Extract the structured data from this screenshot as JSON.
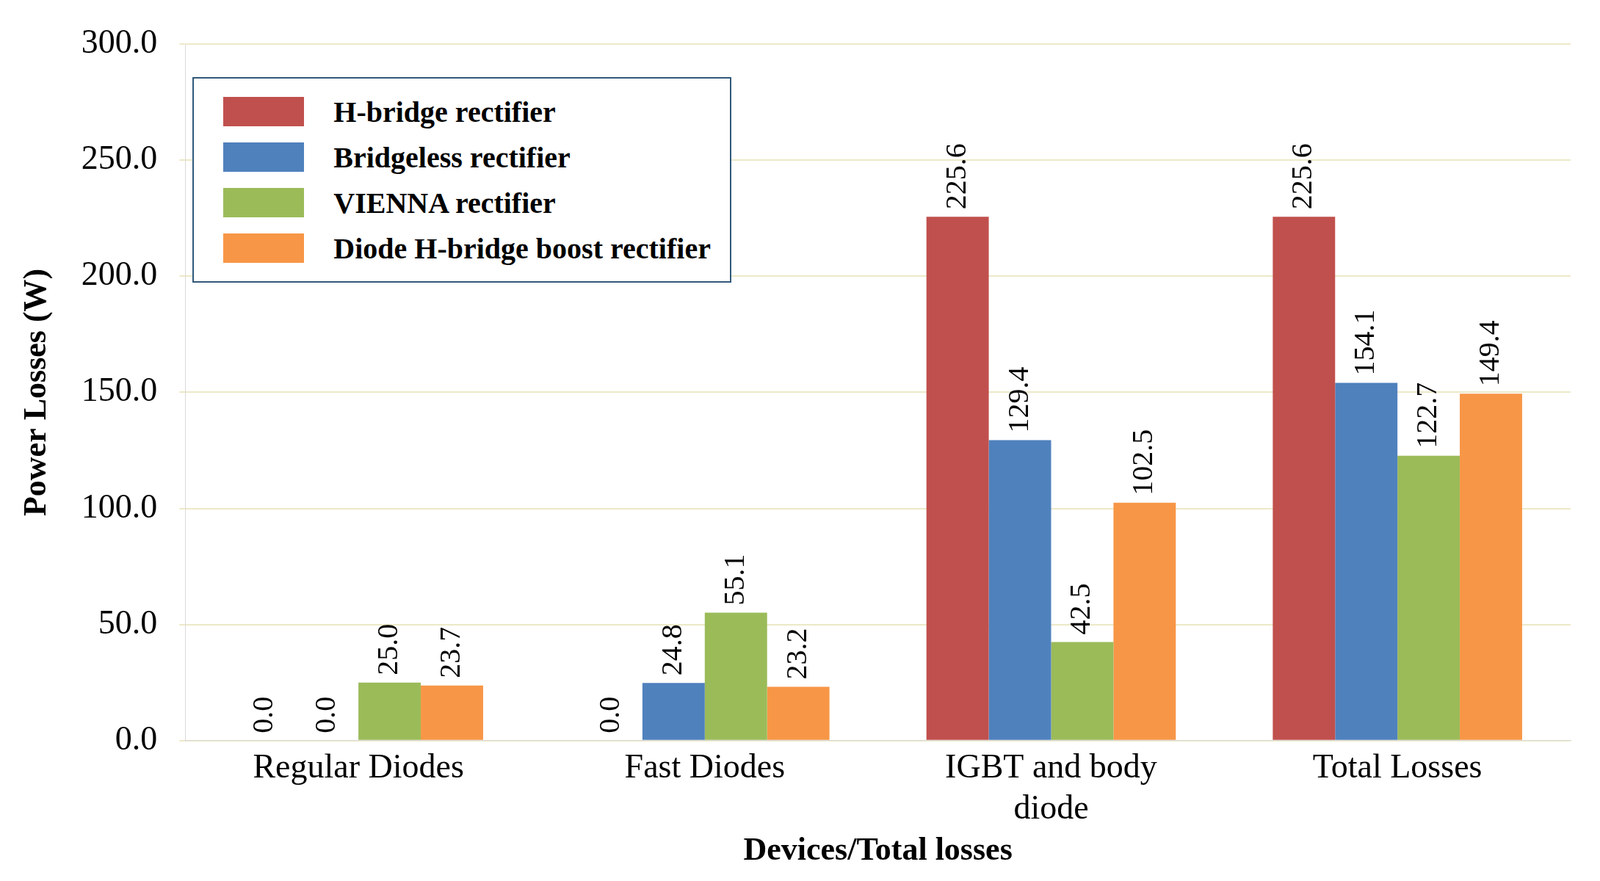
{
  "chart_data": {
    "type": "bar",
    "x_label": "Devices/Total losses",
    "y_label": "Power Losses (W)",
    "categories": [
      "Regular Diodes",
      "Fast Diodes",
      "IGBT and body diode",
      "Total Losses"
    ],
    "series": [
      {
        "name": "H-bridge rectifier",
        "color": "#c0504d",
        "values": [
          0,
          0,
          225.6,
          225.6
        ],
        "value_labels": [
          "0.0",
          "0.0",
          "225.6",
          "225.6"
        ]
      },
      {
        "name": "Bridgeless rectifier",
        "color": "#4f81bd",
        "values": [
          0,
          24.8,
          129.4,
          154.1
        ],
        "value_labels": [
          "0.0",
          "24.8",
          "129.4",
          "154.1"
        ]
      },
      {
        "name": "VIENNA rectifier",
        "color": "#9bbb59",
        "values": [
          25,
          55.1,
          42.5,
          122.7
        ],
        "value_labels": [
          "25.0",
          "55.1",
          "42.5",
          "122.7"
        ]
      },
      {
        "name": "Diode H-bridge boost rectifier",
        "color": "#f79646",
        "values": [
          23.7,
          23.2,
          102.5,
          149.4
        ],
        "value_labels": [
          "23.7",
          "23.2",
          "102.5",
          "149.4"
        ]
      }
    ],
    "ylim": [
      0,
      300
    ],
    "yticks": [
      {
        "value": 0,
        "label": "0.0"
      },
      {
        "value": 50,
        "label": "50.0"
      },
      {
        "value": 100,
        "label": "100.0"
      },
      {
        "value": 150,
        "label": "150.0"
      },
      {
        "value": 200,
        "label": "200.0"
      },
      {
        "value": 250,
        "label": "250.0"
      },
      {
        "value": 300,
        "label": "300.0"
      }
    ],
    "grid": true,
    "legend": "upper left",
    "data_labels": true
  }
}
